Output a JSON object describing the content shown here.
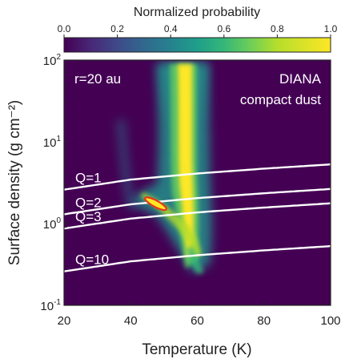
{
  "chart_data": {
    "type": "heatmap",
    "colorbar": {
      "title": "Normalized probability",
      "ticks": [
        "0.0",
        "0.2",
        "0.4",
        "0.6",
        "0.8",
        "1.0"
      ],
      "tick_values": [
        0.0,
        0.2,
        0.4,
        0.6,
        0.8,
        1.0
      ],
      "colormap": [
        "#440154",
        "#3b528b",
        "#21918c",
        "#5ec962",
        "#fde725"
      ]
    },
    "xlabel": "Temperature (K)",
    "ylabel": "Surface density (g cm⁻²)",
    "xlim": [
      20,
      100
    ],
    "ylim": [
      0.1,
      100
    ],
    "yscale": "log",
    "xticks": [
      20,
      40,
      60,
      80,
      100
    ],
    "xtick_labels": [
      "20",
      "40",
      "60",
      "80",
      "100"
    ],
    "yticks": [
      {
        "value": 100,
        "base": "10",
        "exp": "2"
      },
      {
        "value": 10,
        "base": "10",
        "exp": "1"
      },
      {
        "value": 1,
        "base": "10",
        "exp": "0"
      },
      {
        "value": 0.1,
        "base": "10",
        "exp": "-1"
      }
    ],
    "annotations": {
      "radius": "r=20 au",
      "model_line1": "DIANA",
      "model_line2": "compact dust"
    },
    "toomre_curves": [
      {
        "label": "Q=1",
        "x": [
          20,
          40,
          60,
          80,
          100
        ],
        "y": [
          2.6,
          3.45,
          4.1,
          4.7,
          5.3
        ]
      },
      {
        "label": "Q=2",
        "x": [
          20,
          40,
          60,
          80,
          100
        ],
        "y": [
          1.3,
          1.72,
          2.05,
          2.35,
          2.65
        ]
      },
      {
        "label": "Q=3",
        "x": [
          20,
          40,
          60,
          80,
          100
        ],
        "y": [
          0.87,
          1.15,
          1.37,
          1.57,
          1.77
        ]
      },
      {
        "label": "Q=10",
        "x": [
          20,
          40,
          60,
          80,
          100
        ],
        "y": [
          0.26,
          0.345,
          0.41,
          0.47,
          0.53
        ]
      }
    ],
    "best_fit": {
      "x": 47.5,
      "y": 1.75
    },
    "colors": {
      "background": "#440154",
      "curves": "#ffffff",
      "best_fit_outline": "#e8351c"
    }
  }
}
